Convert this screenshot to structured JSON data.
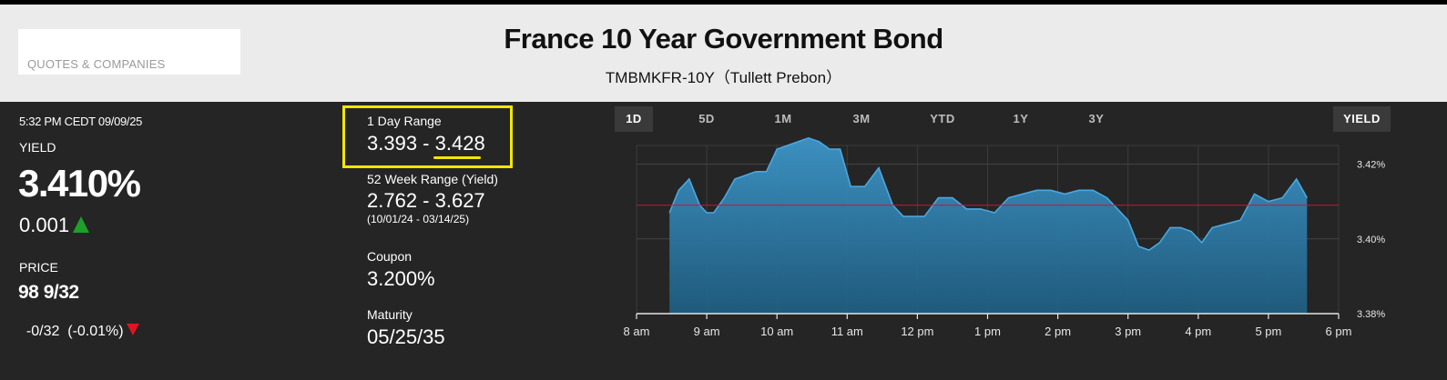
{
  "header": {
    "search_placeholder": "QUOTES & COMPANIES",
    "title": "France 10 Year Government Bond",
    "subtitle": "TMBMKFR-10Y（Tullett Prebon）"
  },
  "quote": {
    "timestamp": "5:32 PM CEDT 09/09/25",
    "yield_label": "YIELD",
    "yield_value": "3.410%",
    "yield_change": "0.001",
    "price_label": "PRICE",
    "price_value": "98 9/32",
    "price_change": "-0/32  (-0.01%)"
  },
  "stats": {
    "day_range_label": "1 Day Range",
    "day_range_low": "3.393",
    "day_range_sep": " - ",
    "day_range_high": "3.428",
    "week52_label": "52 Week Range (Yield)",
    "week52_value": "2.762 - 3.627",
    "week52_dates": "(10/01/24 - 03/14/25)",
    "coupon_label": "Coupon",
    "coupon_value": "3.200%",
    "maturity_label": "Maturity",
    "maturity_value": "05/25/35"
  },
  "tabs": [
    {
      "label": "1D",
      "active": true
    },
    {
      "label": "5D",
      "active": false
    },
    {
      "label": "1M",
      "active": false
    },
    {
      "label": "3M",
      "active": false
    },
    {
      "label": "YTD",
      "active": false
    },
    {
      "label": "1Y",
      "active": false
    },
    {
      "label": "3Y",
      "active": false
    }
  ],
  "mode_button": "YIELD",
  "colors": {
    "area_fill_top": "#3d95c8",
    "area_fill_bottom": "#1f5d80",
    "area_line": "#4aa8e0",
    "reference_line": "#c2183a",
    "up": "#1e9e2a",
    "down": "#e0141e",
    "highlight": "#f2e600"
  },
  "chart_data": {
    "type": "area",
    "x_ticks": [
      "8 am",
      "9 am",
      "10 am",
      "11 am",
      "12 pm",
      "1 pm",
      "2 pm",
      "3 pm",
      "4 pm",
      "5 pm",
      "6 pm"
    ],
    "y_ticks": [
      "3.38%",
      "3.40%",
      "3.42%"
    ],
    "ylim": [
      3.38,
      3.425
    ],
    "xlim_hours": [
      8,
      18
    ],
    "reference_value": 3.409,
    "grid": true,
    "x": [
      8.47,
      8.6,
      8.75,
      8.9,
      9.0,
      9.1,
      9.25,
      9.4,
      9.55,
      9.7,
      9.85,
      10.0,
      10.15,
      10.3,
      10.45,
      10.6,
      10.75,
      10.9,
      11.05,
      11.25,
      11.45,
      11.65,
      11.8,
      11.95,
      12.1,
      12.3,
      12.5,
      12.7,
      12.9,
      13.1,
      13.3,
      13.5,
      13.7,
      13.9,
      14.1,
      14.3,
      14.5,
      14.7,
      14.85,
      15.0,
      15.15,
      15.3,
      15.45,
      15.6,
      15.75,
      15.9,
      16.05,
      16.2,
      16.4,
      16.6,
      16.8,
      17.0,
      17.2,
      17.4,
      17.55
    ],
    "values": [
      3.407,
      3.413,
      3.416,
      3.409,
      3.407,
      3.407,
      3.411,
      3.416,
      3.417,
      3.418,
      3.418,
      3.424,
      3.425,
      3.426,
      3.427,
      3.426,
      3.424,
      3.424,
      3.414,
      3.414,
      3.419,
      3.409,
      3.406,
      3.406,
      3.406,
      3.411,
      3.411,
      3.408,
      3.408,
      3.407,
      3.411,
      3.412,
      3.413,
      3.413,
      3.412,
      3.413,
      3.413,
      3.411,
      3.408,
      3.405,
      3.398,
      3.397,
      3.399,
      3.403,
      3.403,
      3.402,
      3.399,
      3.403,
      3.404,
      3.405,
      3.412,
      3.41,
      3.411,
      3.416,
      3.411
    ]
  }
}
